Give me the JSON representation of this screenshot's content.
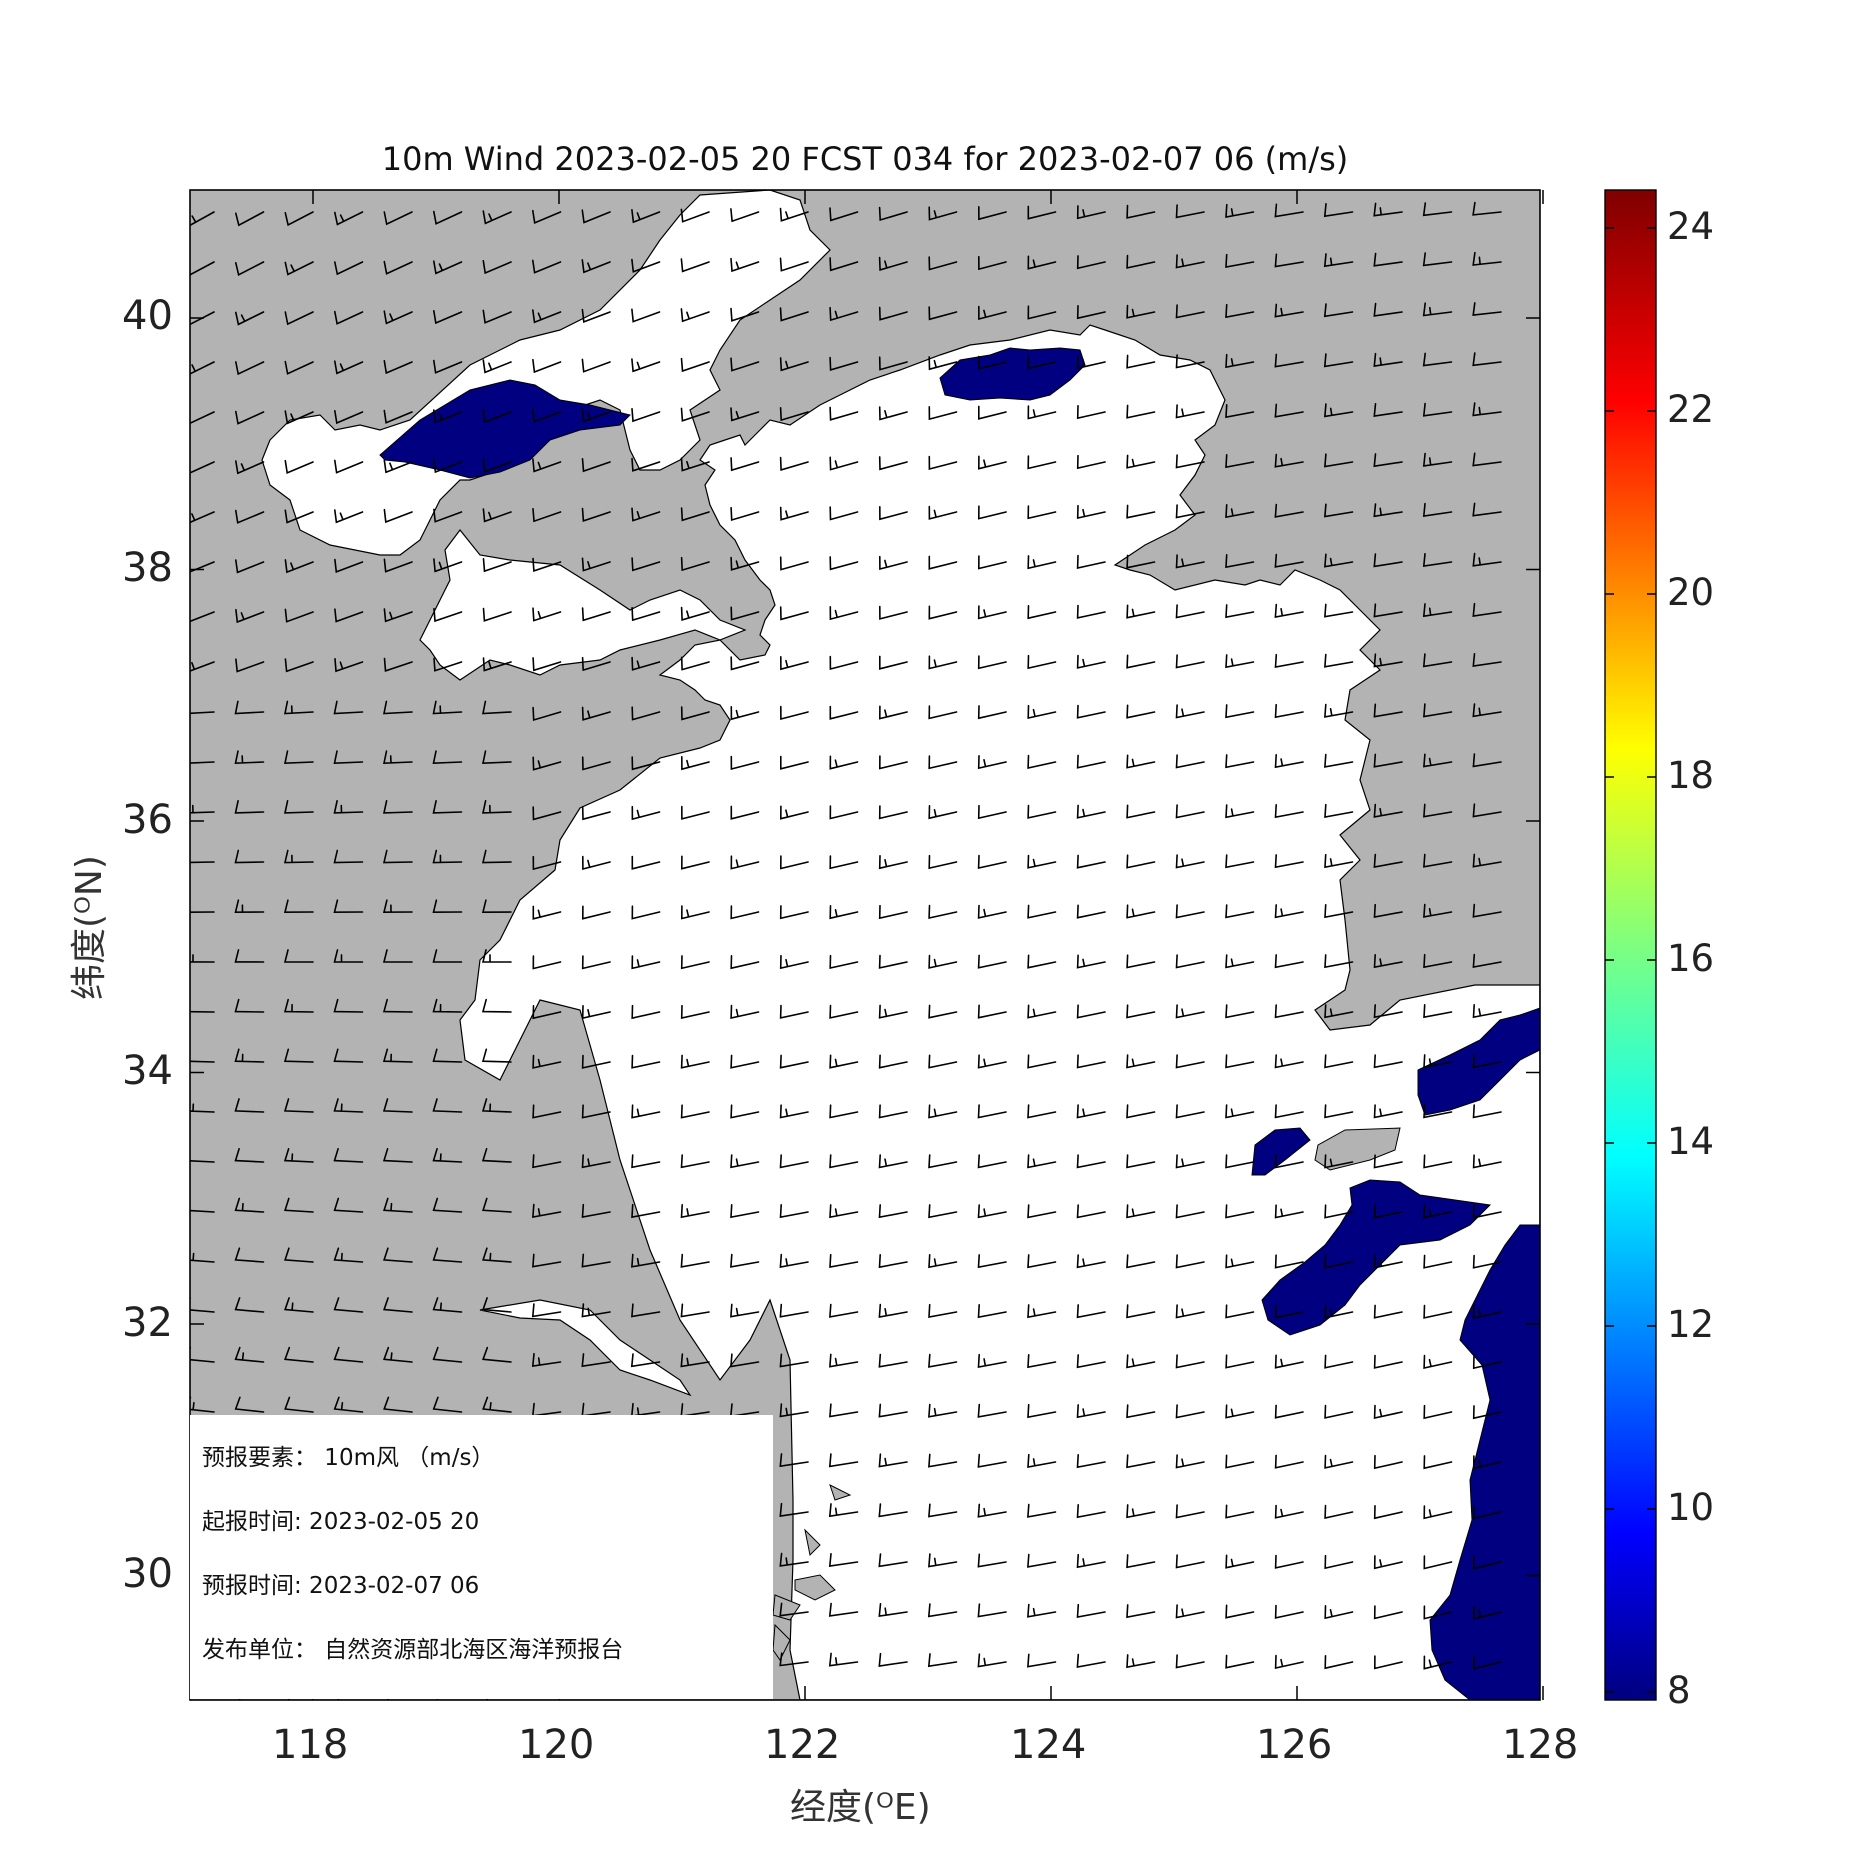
{
  "title": "10m Wind 2023-02-05 20 FCST 034 for 2023-02-07 06 (m/s)",
  "xlabel": "经度(ᴼE)",
  "ylabel": "纬度(ᴼN)",
  "x_ticks": [
    "118",
    "120",
    "122",
    "124",
    "126",
    "128"
  ],
  "y_ticks": [
    "40",
    "38",
    "36",
    "34",
    "32",
    "30"
  ],
  "colorbar": {
    "ticks": [
      "24",
      "22",
      "20",
      "18",
      "16",
      "14",
      "12",
      "10",
      "8"
    ],
    "range": [
      8,
      24.5
    ],
    "colormap": "jet"
  },
  "info": {
    "element": "预报要素：  10m风  （m/s）",
    "issue_time": "起报时间: 2023-02-05 20",
    "forecast_time": "预报时间: 2023-02-07 06",
    "publisher": "发布单位：  自然资源部北海区海洋预报台"
  },
  "map": {
    "lon_range": [
      117,
      128
    ],
    "lat_range": [
      29,
      41
    ],
    "land_color": "#b3b3b3",
    "sea_color": "#ffffff",
    "high_wind_color": "#000080"
  }
}
